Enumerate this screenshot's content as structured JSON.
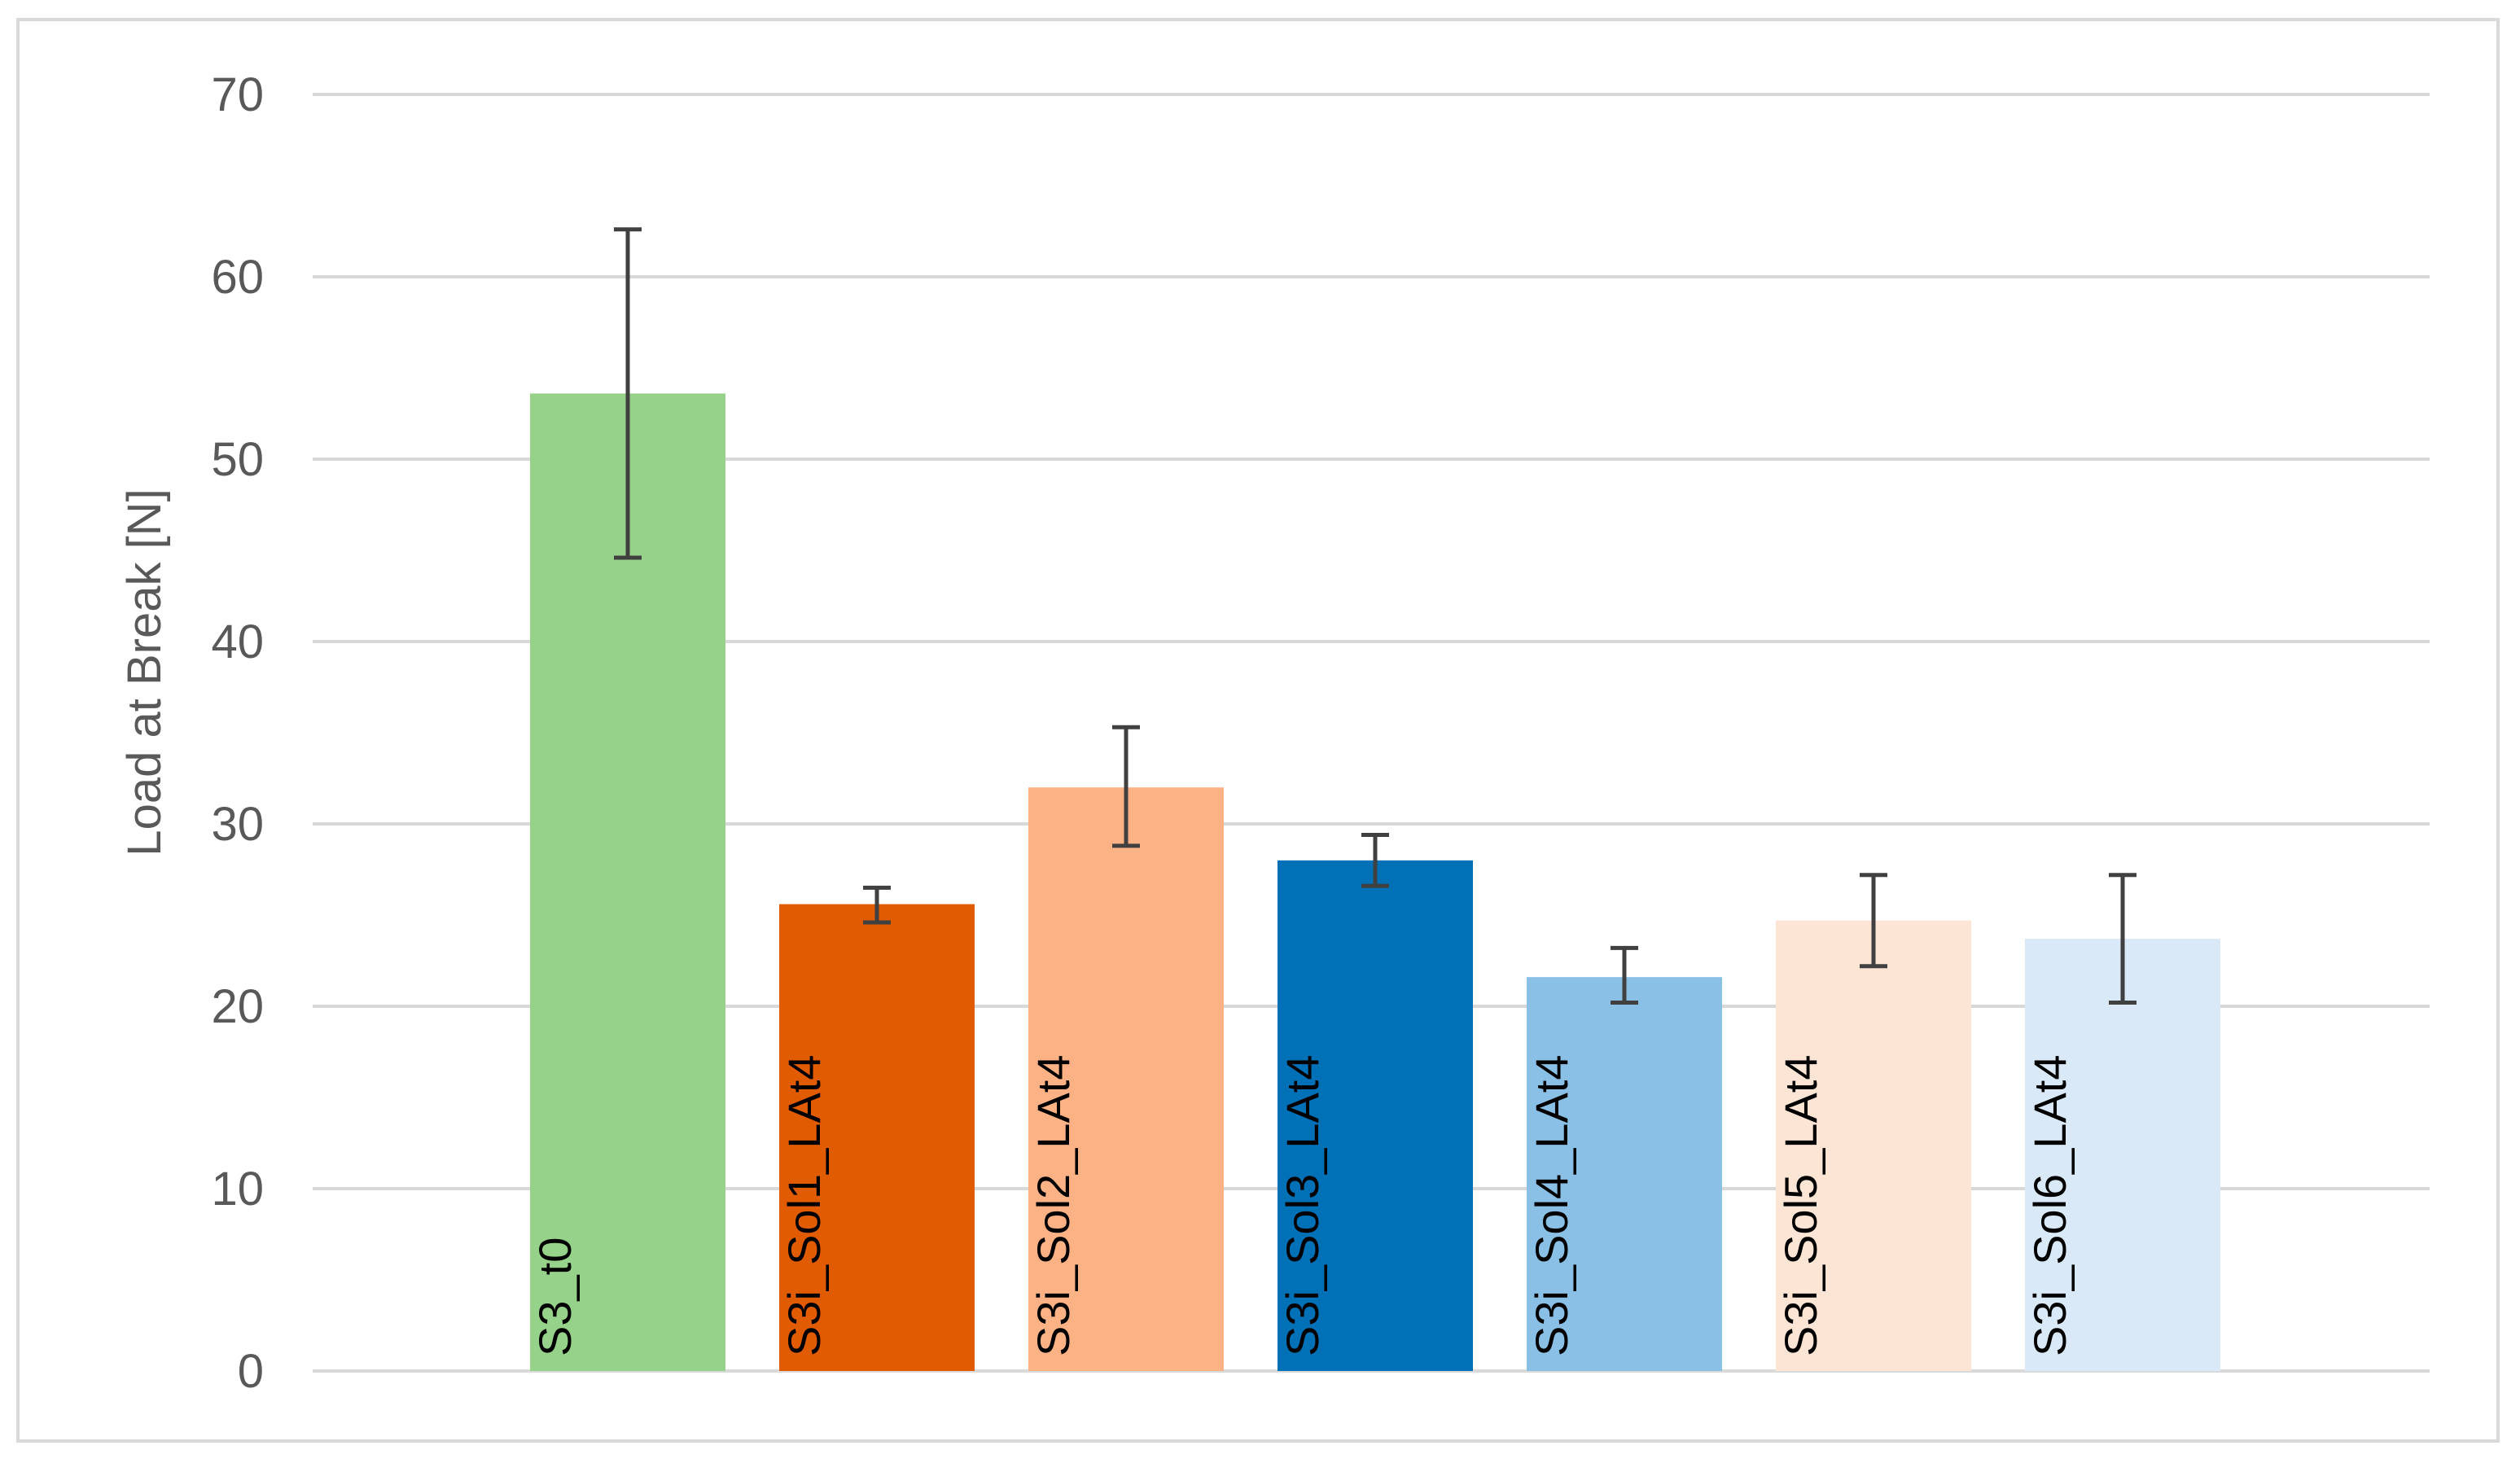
{
  "chart_data": {
    "type": "bar",
    "title": "",
    "xlabel": "",
    "ylabel": "Load at Break [N]",
    "ylim": [
      0,
      70
    ],
    "yticks": [
      0,
      10,
      20,
      30,
      40,
      50,
      60,
      70
    ],
    "grid": true,
    "legend": "none",
    "categories": [
      "S3_t0",
      "S3i_Sol1_LAt4",
      "S3i_Sol2_LAt4",
      "S3i_Sol3_LAt4",
      "S3i_Sol4_LAt4",
      "S3i_Sol5_LAt4",
      "S3i_Sol6_LAt4"
    ],
    "values": [
      53.6,
      25.6,
      32.0,
      28.0,
      21.6,
      24.7,
      23.7
    ],
    "error_low": [
      44.6,
      24.6,
      28.8,
      26.6,
      20.2,
      22.2,
      20.2
    ],
    "error_high": [
      62.6,
      26.5,
      35.3,
      29.4,
      23.2,
      27.2,
      27.2
    ],
    "colors": [
      "#97d28a",
      "#e15b00",
      "#fcb284",
      "#0070b7",
      "#8ac0e5",
      "#fde5d6",
      "#dae9f7"
    ]
  }
}
